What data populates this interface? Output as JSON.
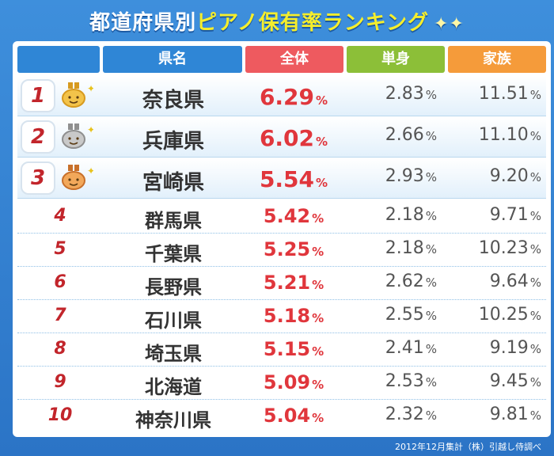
{
  "title": {
    "part1": "都道府県別",
    "part2": "ピアノ保有率ランキング"
  },
  "headers": {
    "pref": "県名",
    "total": "全体",
    "single": "単身",
    "family": "家族"
  },
  "colors": {
    "pref": "#2f86d6",
    "total": "#ee5a5f",
    "single": "#8cbf38",
    "family": "#f59b3a"
  },
  "unit": "%",
  "medals": [
    "gold-medal-icon",
    "silver-medal-icon",
    "bronze-medal-icon"
  ],
  "chart_data": {
    "type": "table",
    "columns": [
      "県名",
      "全体",
      "単身",
      "家族"
    ],
    "rows": [
      {
        "rank": "1",
        "pref": "奈良県",
        "total": "6.29",
        "single": "2.83",
        "family": "11.51"
      },
      {
        "rank": "2",
        "pref": "兵庫県",
        "total": "6.02",
        "single": "2.66",
        "family": "11.10"
      },
      {
        "rank": "3",
        "pref": "宮崎県",
        "total": "5.54",
        "single": "2.93",
        "family": "9.20"
      },
      {
        "rank": "4",
        "pref": "群馬県",
        "total": "5.42",
        "single": "2.18",
        "family": "9.71"
      },
      {
        "rank": "5",
        "pref": "千葉県",
        "total": "5.25",
        "single": "2.18",
        "family": "10.23"
      },
      {
        "rank": "6",
        "pref": "長野県",
        "total": "5.21",
        "single": "2.62",
        "family": "9.64"
      },
      {
        "rank": "7",
        "pref": "石川県",
        "total": "5.18",
        "single": "2.55",
        "family": "10.25"
      },
      {
        "rank": "8",
        "pref": "埼玉県",
        "total": "5.15",
        "single": "2.41",
        "family": "9.19"
      },
      {
        "rank": "9",
        "pref": "北海道",
        "total": "5.09",
        "single": "2.53",
        "family": "9.45"
      },
      {
        "rank": "10",
        "pref": "神奈川県",
        "total": "5.04",
        "single": "2.32",
        "family": "9.81"
      }
    ]
  },
  "footer": "2012年12月集計（株）引越し侍調べ"
}
